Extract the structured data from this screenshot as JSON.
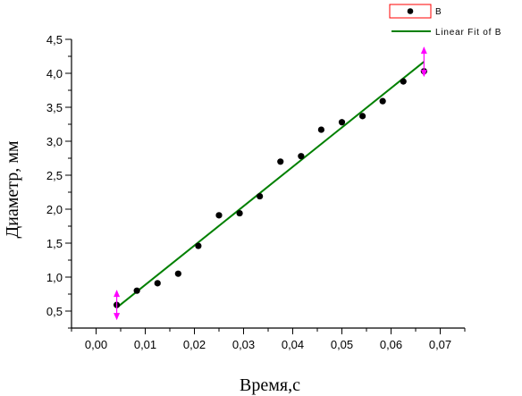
{
  "chart_data": {
    "type": "scatter",
    "xlabel": "Время,с",
    "ylabel": "Диаметр, мм",
    "xlim": [
      -0.005,
      0.075
    ],
    "ylim": [
      0.25,
      4.5
    ],
    "xticks": [
      {
        "value": 0.0,
        "label": "0,00"
      },
      {
        "value": 0.01,
        "label": "0,01"
      },
      {
        "value": 0.02,
        "label": "0,02"
      },
      {
        "value": 0.03,
        "label": "0,03"
      },
      {
        "value": 0.04,
        "label": "0,04"
      },
      {
        "value": 0.05,
        "label": "0,05"
      },
      {
        "value": 0.06,
        "label": "0,06"
      },
      {
        "value": 0.07,
        "label": "0,07"
      }
    ],
    "yticks": [
      {
        "value": 0.5,
        "label": "0,5"
      },
      {
        "value": 1.0,
        "label": "1,0"
      },
      {
        "value": 1.5,
        "label": "1,5"
      },
      {
        "value": 2.0,
        "label": "2,0"
      },
      {
        "value": 2.5,
        "label": "2,5"
      },
      {
        "value": 3.0,
        "label": "3,0"
      },
      {
        "value": 3.5,
        "label": "3,5"
      },
      {
        "value": 4.0,
        "label": "4,0"
      },
      {
        "value": 4.5,
        "label": "4,5"
      }
    ],
    "series": [
      {
        "name": "B",
        "color": "#000000",
        "x": [
          0.0042,
          0.0083,
          0.0125,
          0.0167,
          0.0208,
          0.025,
          0.0292,
          0.0333,
          0.0375,
          0.0417,
          0.0458,
          0.05,
          0.0542,
          0.0583,
          0.0625,
          0.0667
        ],
        "y": [
          0.59,
          0.8,
          0.91,
          1.05,
          1.46,
          1.91,
          1.94,
          2.19,
          2.7,
          2.78,
          3.17,
          3.28,
          3.37,
          3.59,
          3.88,
          4.03
        ]
      }
    ],
    "fit": {
      "name": "Linear Fit of B",
      "color": "#008000",
      "x": [
        0.0042,
        0.0667
      ],
      "y": [
        0.55,
        4.17
      ]
    },
    "range_markers": {
      "color": "#ff00ff",
      "x": [
        0.0042,
        0.0667
      ],
      "y": [
        0.59,
        4.17
      ]
    },
    "legend": {
      "position": "top-right",
      "frame": "#ff0000"
    },
    "grid": false
  }
}
